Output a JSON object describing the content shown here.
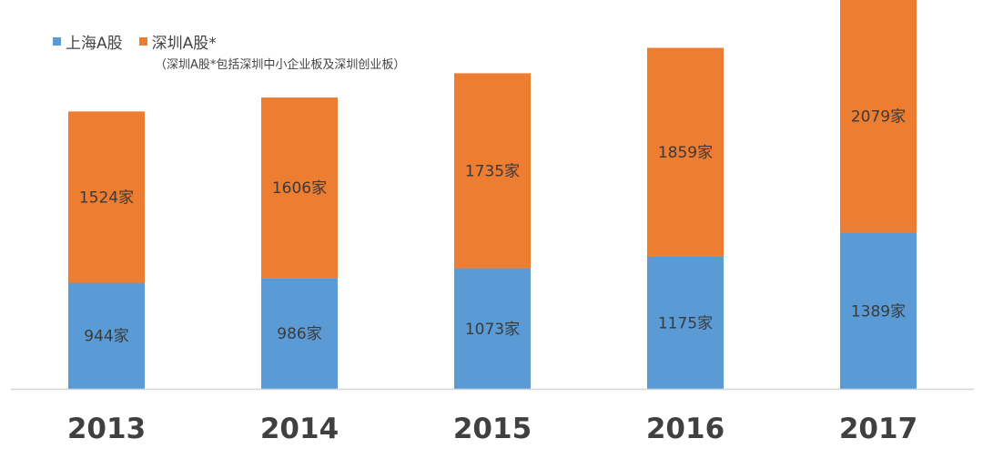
{
  "chart_data": {
    "type": "bar",
    "stacked": true,
    "categories": [
      "2013",
      "2014",
      "2015",
      "2016",
      "2017"
    ],
    "series": [
      {
        "name": "上海A股",
        "color": "#5b9bd5",
        "values": [
          944,
          986,
          1073,
          1175,
          1389
        ],
        "labels": [
          "944家",
          "986家",
          "1073家",
          "1175家",
          "1389家"
        ]
      },
      {
        "name": "深圳A股*",
        "color": "#ed7d31",
        "values": [
          1524,
          1606,
          1735,
          1859,
          2079
        ],
        "labels": [
          "1524家",
          "1606家",
          "1735家",
          "1859家",
          "2079家"
        ]
      }
    ],
    "note": "（深圳A股*包括深圳中小企业板及深圳创业板）",
    "legend_position": "top-left",
    "grid": false,
    "ylim": [
      0,
      3500
    ]
  }
}
